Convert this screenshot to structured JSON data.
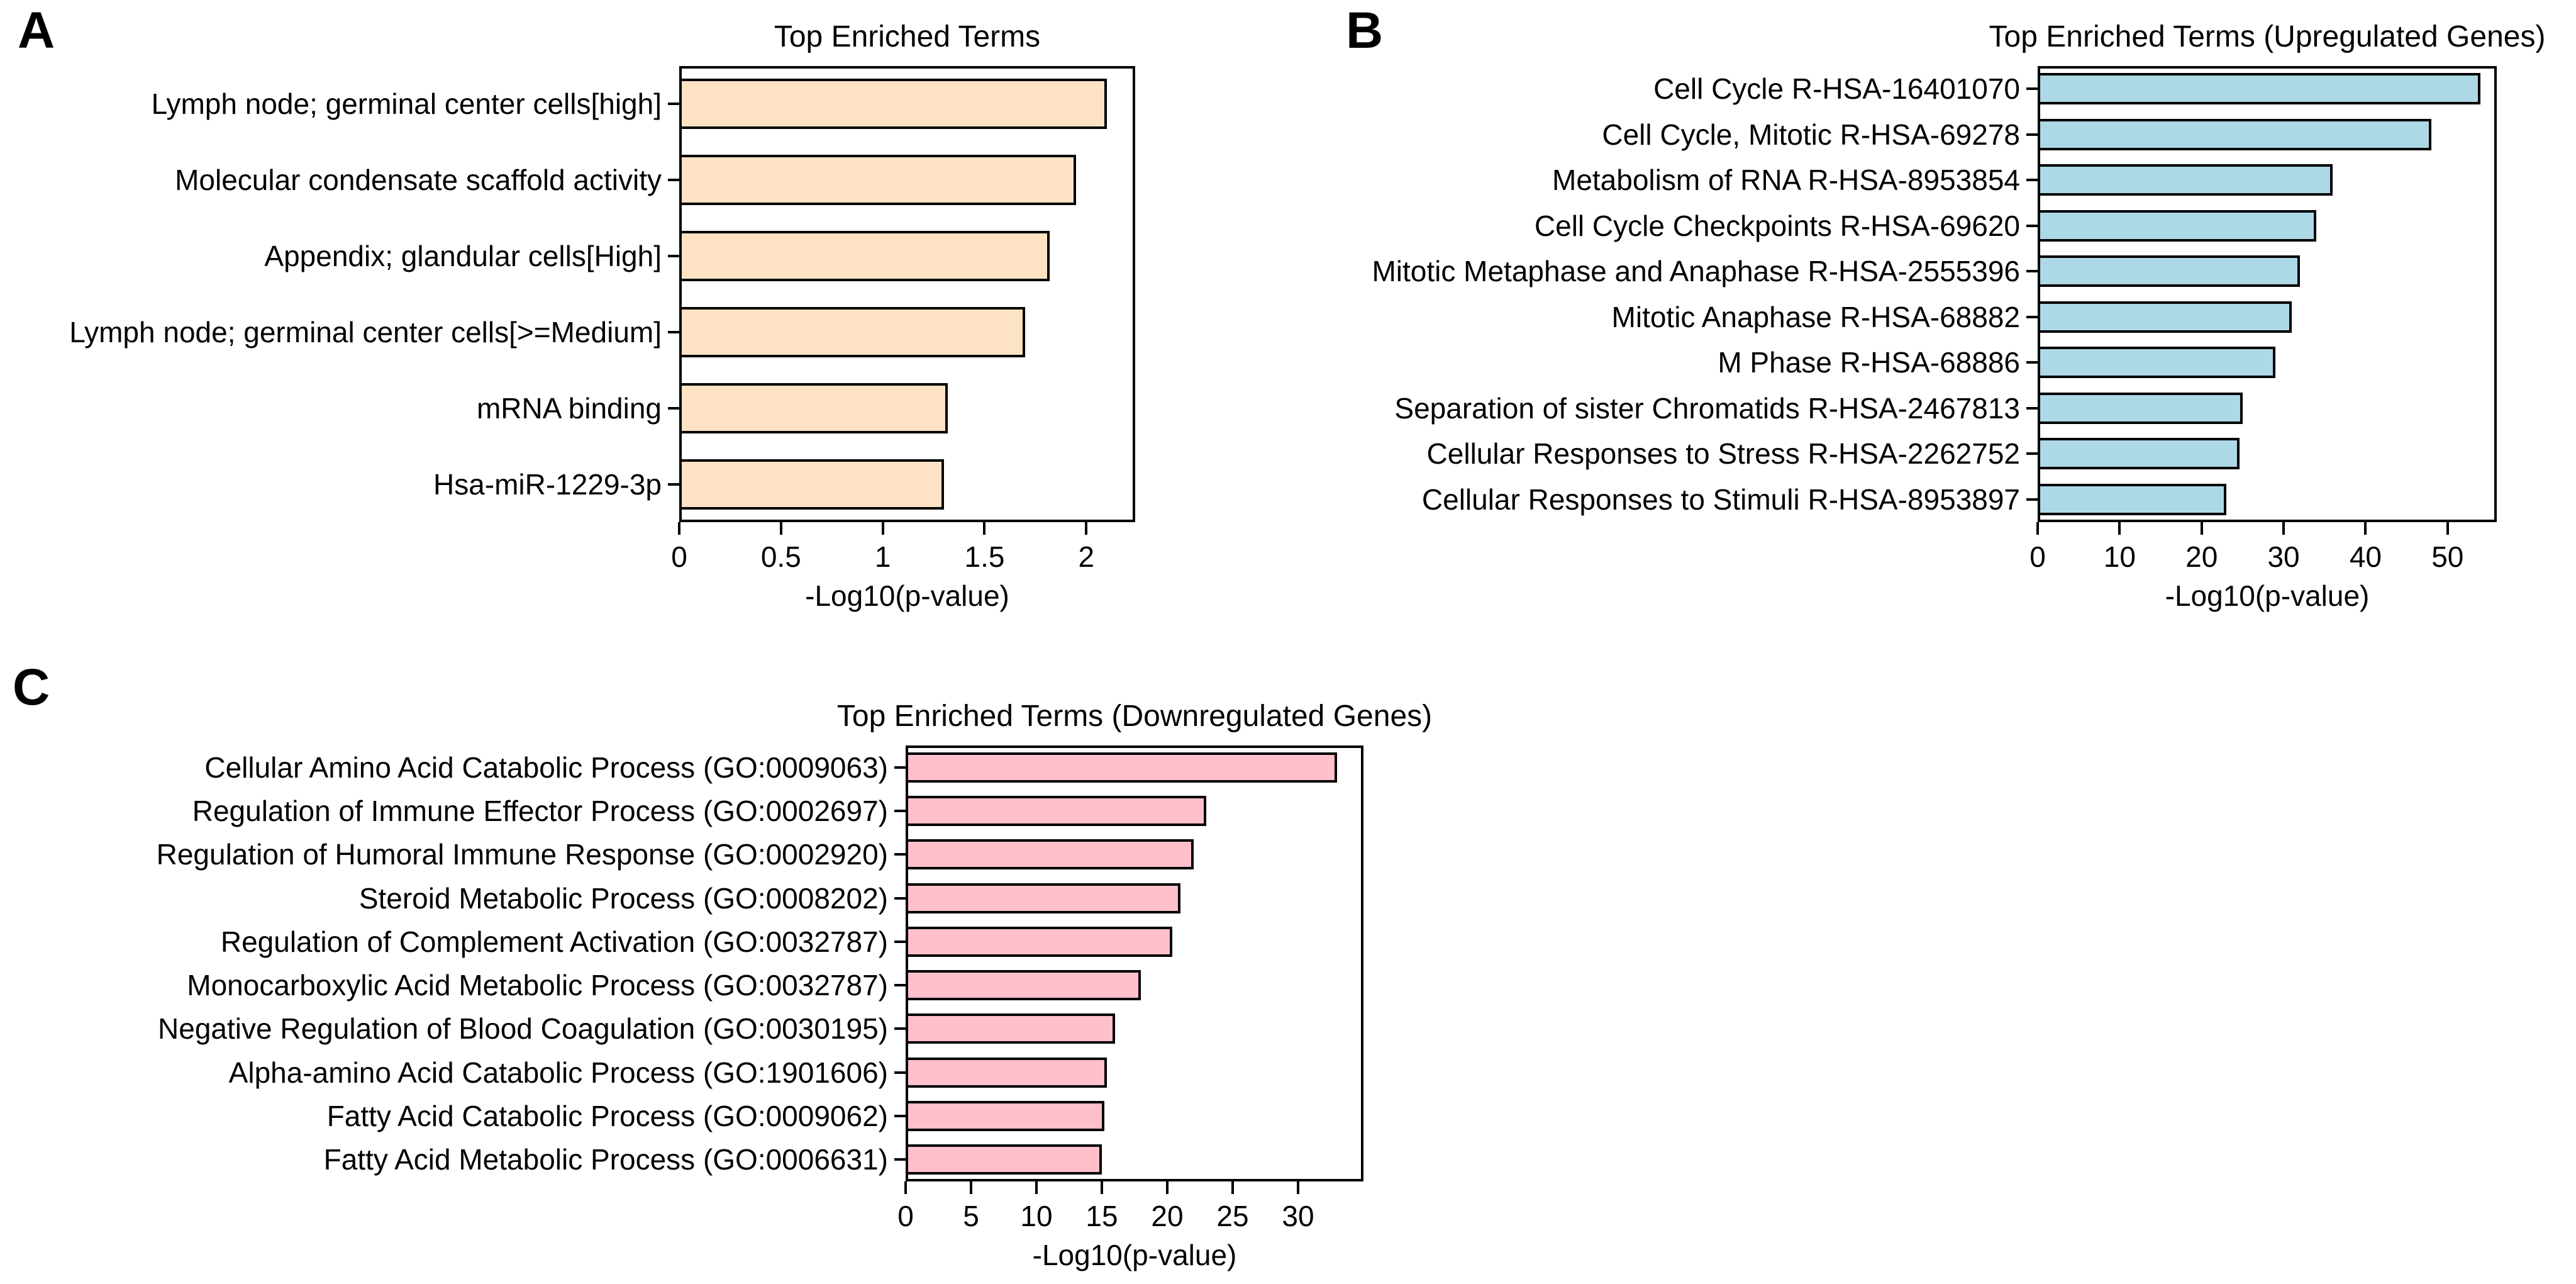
{
  "figure": {
    "background": "#ffffff",
    "frame_color": "#000000",
    "bar_border_color": "#000000"
  },
  "chart_data": [
    {
      "type": "bar",
      "orientation": "horizontal",
      "panel": "A",
      "title": "Top Enriched Terms",
      "xlabel": "-Log10(p-value)",
      "bar_color": "#FDE3C3",
      "grid": false,
      "legend": null,
      "categories": [
        "Lymph node; germinal center cells[high]",
        "Molecular condensate scaffold activity",
        "Appendix; glandular cells[High]",
        "Lymph node; germinal center cells[>=Medium]",
        "mRNA binding",
        "Hsa-miR-1229-3p"
      ],
      "values": [
        2.1,
        1.95,
        1.82,
        1.7,
        1.32,
        1.3
      ],
      "xlim": [
        0,
        2.24
      ],
      "xticks": [
        {
          "value": 0,
          "label": "0"
        },
        {
          "value": 0.5,
          "label": "0.5"
        },
        {
          "value": 1,
          "label": "1"
        },
        {
          "value": 1.5,
          "label": "1.5"
        },
        {
          "value": 2,
          "label": "2"
        }
      ]
    },
    {
      "type": "bar",
      "orientation": "horizontal",
      "panel": "B",
      "title": "Top Enriched Terms (Upregulated Genes)",
      "xlabel": "-Log10(p-value)",
      "bar_color": "#ADD8E6",
      "grid": false,
      "legend": null,
      "categories": [
        "Cell Cycle R-HSA-16401070",
        "Cell Cycle, Mitotic R-HSA-69278",
        "Metabolism of RNA R-HSA-8953854",
        "Cell Cycle Checkpoints R-HSA-69620",
        "Mitotic Metaphase and Anaphase R-HSA-2555396",
        "Mitotic Anaphase R-HSA-68882",
        "M Phase R-HSA-68886",
        "Separation of sister Chromatids R-HSA-2467813",
        "Cellular Responses to Stress R-HSA-2262752",
        "Cellular Responses to Stimuli R-HSA-8953897"
      ],
      "values": [
        54,
        48,
        36,
        34,
        32,
        31,
        29,
        25,
        24.6,
        23
      ],
      "xlim": [
        0,
        56
      ],
      "xticks": [
        {
          "value": 0,
          "label": "0"
        },
        {
          "value": 10,
          "label": "10"
        },
        {
          "value": 20,
          "label": "20"
        },
        {
          "value": 30,
          "label": "30"
        },
        {
          "value": 40,
          "label": "40"
        },
        {
          "value": 50,
          "label": "50"
        }
      ]
    },
    {
      "type": "bar",
      "orientation": "horizontal",
      "panel": "C",
      "title": "Top Enriched Terms (Downregulated Genes)",
      "xlabel": "-Log10(p-value)",
      "bar_color": "#FFC0CB",
      "grid": false,
      "legend": null,
      "categories": [
        "Cellular Amino Acid Catabolic Process (GO:0009063)",
        "Regulation of Immune Effector Process (GO:0002697)",
        "Regulation of Humoral Immune Response (GO:0002920)",
        "Steroid Metabolic Process (GO:0008202)",
        "Regulation of Complement Activation (GO:0032787)",
        "Monocarboxylic Acid Metabolic Process (GO:0032787)",
        "Negative Regulation of Blood Coagulation (GO:0030195)",
        "Alpha-amino Acid Catabolic Process (GO:1901606)",
        "Fatty Acid Catabolic Process (GO:0009062)",
        "Fatty Acid Metabolic Process (GO:0006631)"
      ],
      "values": [
        33,
        23,
        22,
        21,
        20.4,
        18,
        16,
        15.4,
        15.2,
        15
      ],
      "xlim": [
        0,
        35
      ],
      "xticks": [
        {
          "value": 0,
          "label": "0"
        },
        {
          "value": 5,
          "label": "5"
        },
        {
          "value": 10,
          "label": "10"
        },
        {
          "value": 15,
          "label": "15"
        },
        {
          "value": 20,
          "label": "20"
        },
        {
          "value": 25,
          "label": "25"
        },
        {
          "value": 30,
          "label": "30"
        }
      ]
    }
  ]
}
